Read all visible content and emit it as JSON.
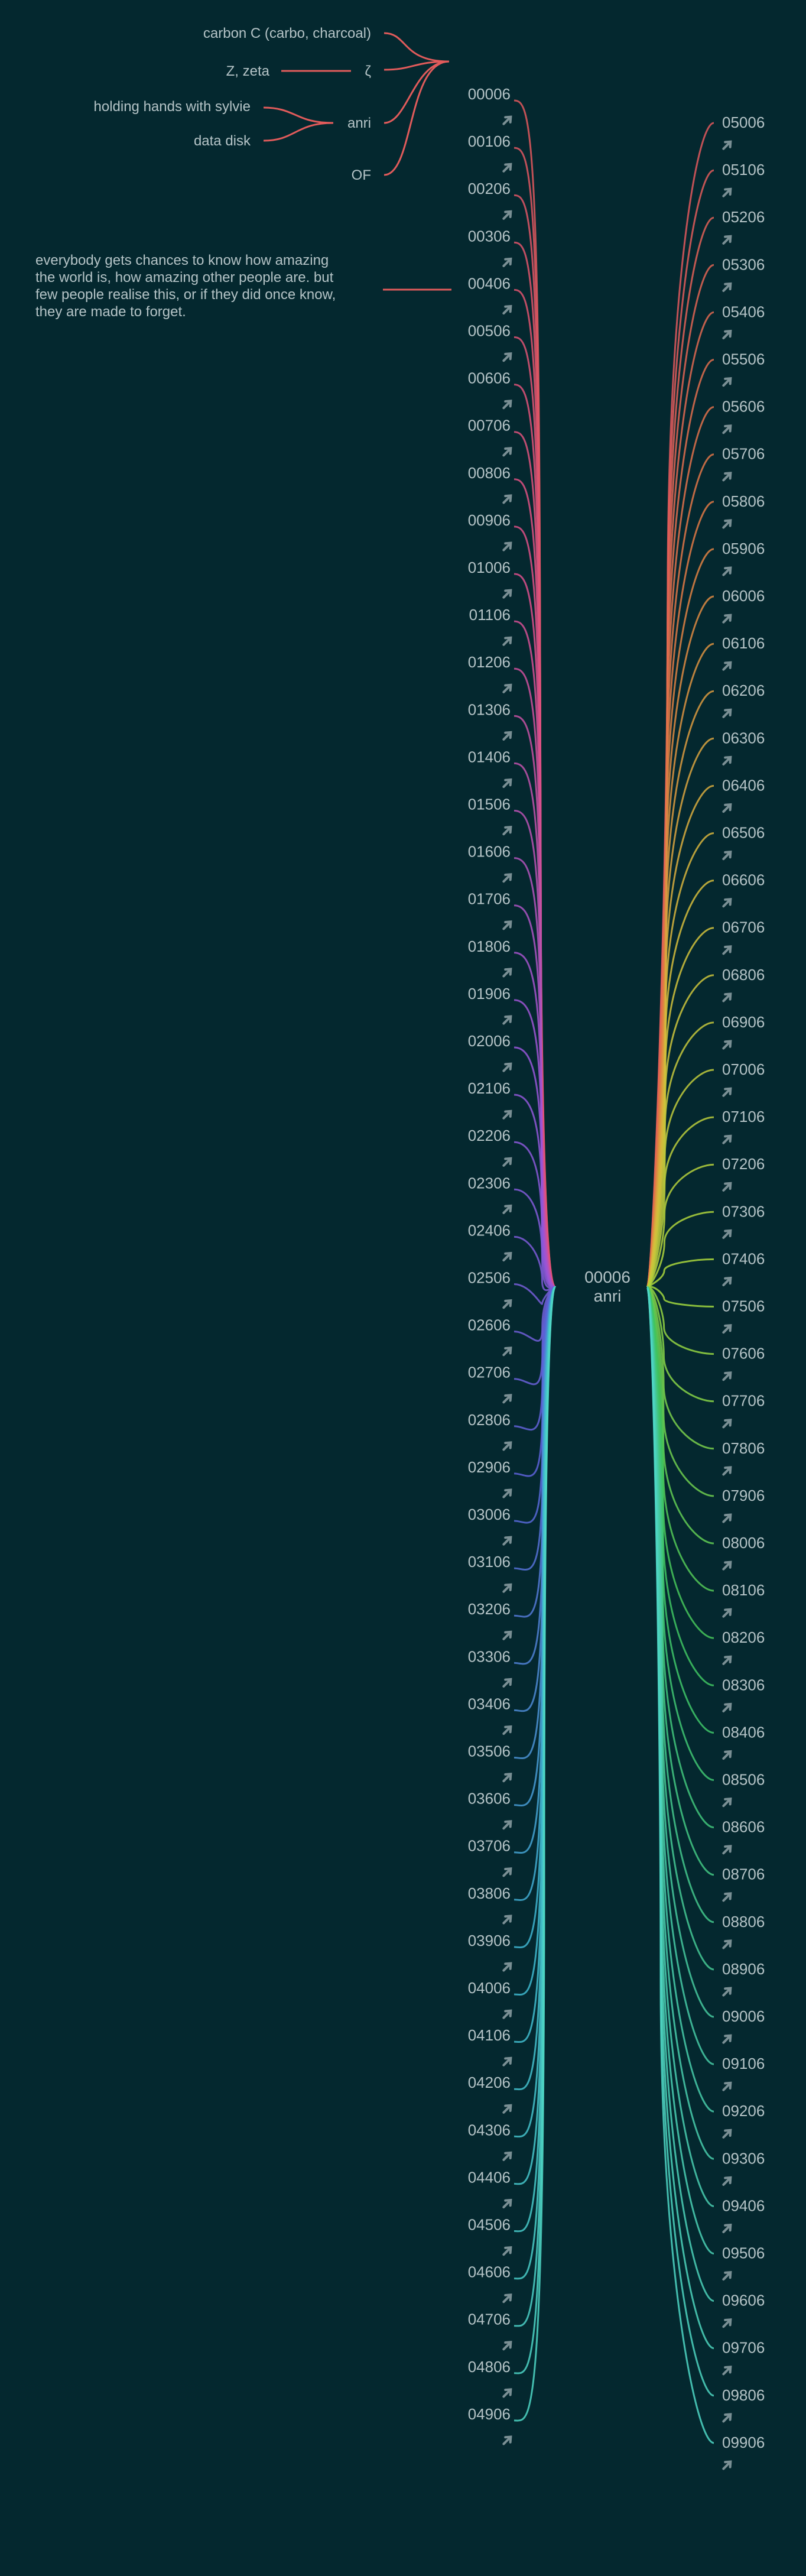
{
  "center": {
    "id": "00006",
    "name": "anri"
  },
  "left_column": [
    "00006",
    "00106",
    "00206",
    "00306",
    "00406",
    "00506",
    "00606",
    "00706",
    "00806",
    "00906",
    "01006",
    "01106",
    "01206",
    "01306",
    "01406",
    "01506",
    "01606",
    "01706",
    "01806",
    "01906",
    "02006",
    "02106",
    "02206",
    "02306",
    "02406",
    "02506",
    "02606",
    "02706",
    "02806",
    "02906",
    "03006",
    "03106",
    "03206",
    "03306",
    "03406",
    "03506",
    "03606",
    "03706",
    "03806",
    "03906",
    "04006",
    "04106",
    "04206",
    "04306",
    "04406",
    "04506",
    "04606",
    "04706",
    "04806",
    "04906"
  ],
  "right_column": [
    "05006",
    "05106",
    "05206",
    "05306",
    "05406",
    "05506",
    "05606",
    "05706",
    "05806",
    "05906",
    "06006",
    "06106",
    "06206",
    "06306",
    "06406",
    "06506",
    "06606",
    "06706",
    "06806",
    "06906",
    "07006",
    "07106",
    "07206",
    "07306",
    "07406",
    "07506",
    "07606",
    "07706",
    "07806",
    "07906",
    "08006",
    "08106",
    "08206",
    "08306",
    "08406",
    "08506",
    "08606",
    "08706",
    "08806",
    "08906",
    "09006",
    "09106",
    "09206",
    "09306",
    "09406",
    "09506",
    "09606",
    "09706",
    "09806",
    "09906"
  ],
  "first_node_sources": {
    "carbon": "carbon C (carbo, charcoal)",
    "zeta_word": "Z, zeta",
    "zeta_symbol": "ζ",
    "anri": "anri",
    "anri_sources": [
      "holding hands with sylvie",
      "data disk"
    ],
    "of": "OF"
  },
  "note_for_00206": [
    "everybody gets chances to know how amazing",
    "the world is, how amazing other people are. but",
    "few people realise this, or if they did once know,",
    "they are made to forget."
  ],
  "colors": {
    "background": "#04282f",
    "text": "#b4c3c6",
    "arrow": "#7a8f94",
    "source_links": "#e05b5b",
    "left_gradient": [
      "#e2585d",
      "#dd4f8a",
      "#9b55d8",
      "#5a63d8",
      "#3fb6d0",
      "#4fd6c4"
    ],
    "right_gradient": [
      "#e2585d",
      "#e07a44",
      "#d5bf3c",
      "#a7d83c",
      "#3fc45e",
      "#47c9a4",
      "#4fd6c4"
    ]
  },
  "icons": {
    "arrow": "arrow-icon"
  }
}
